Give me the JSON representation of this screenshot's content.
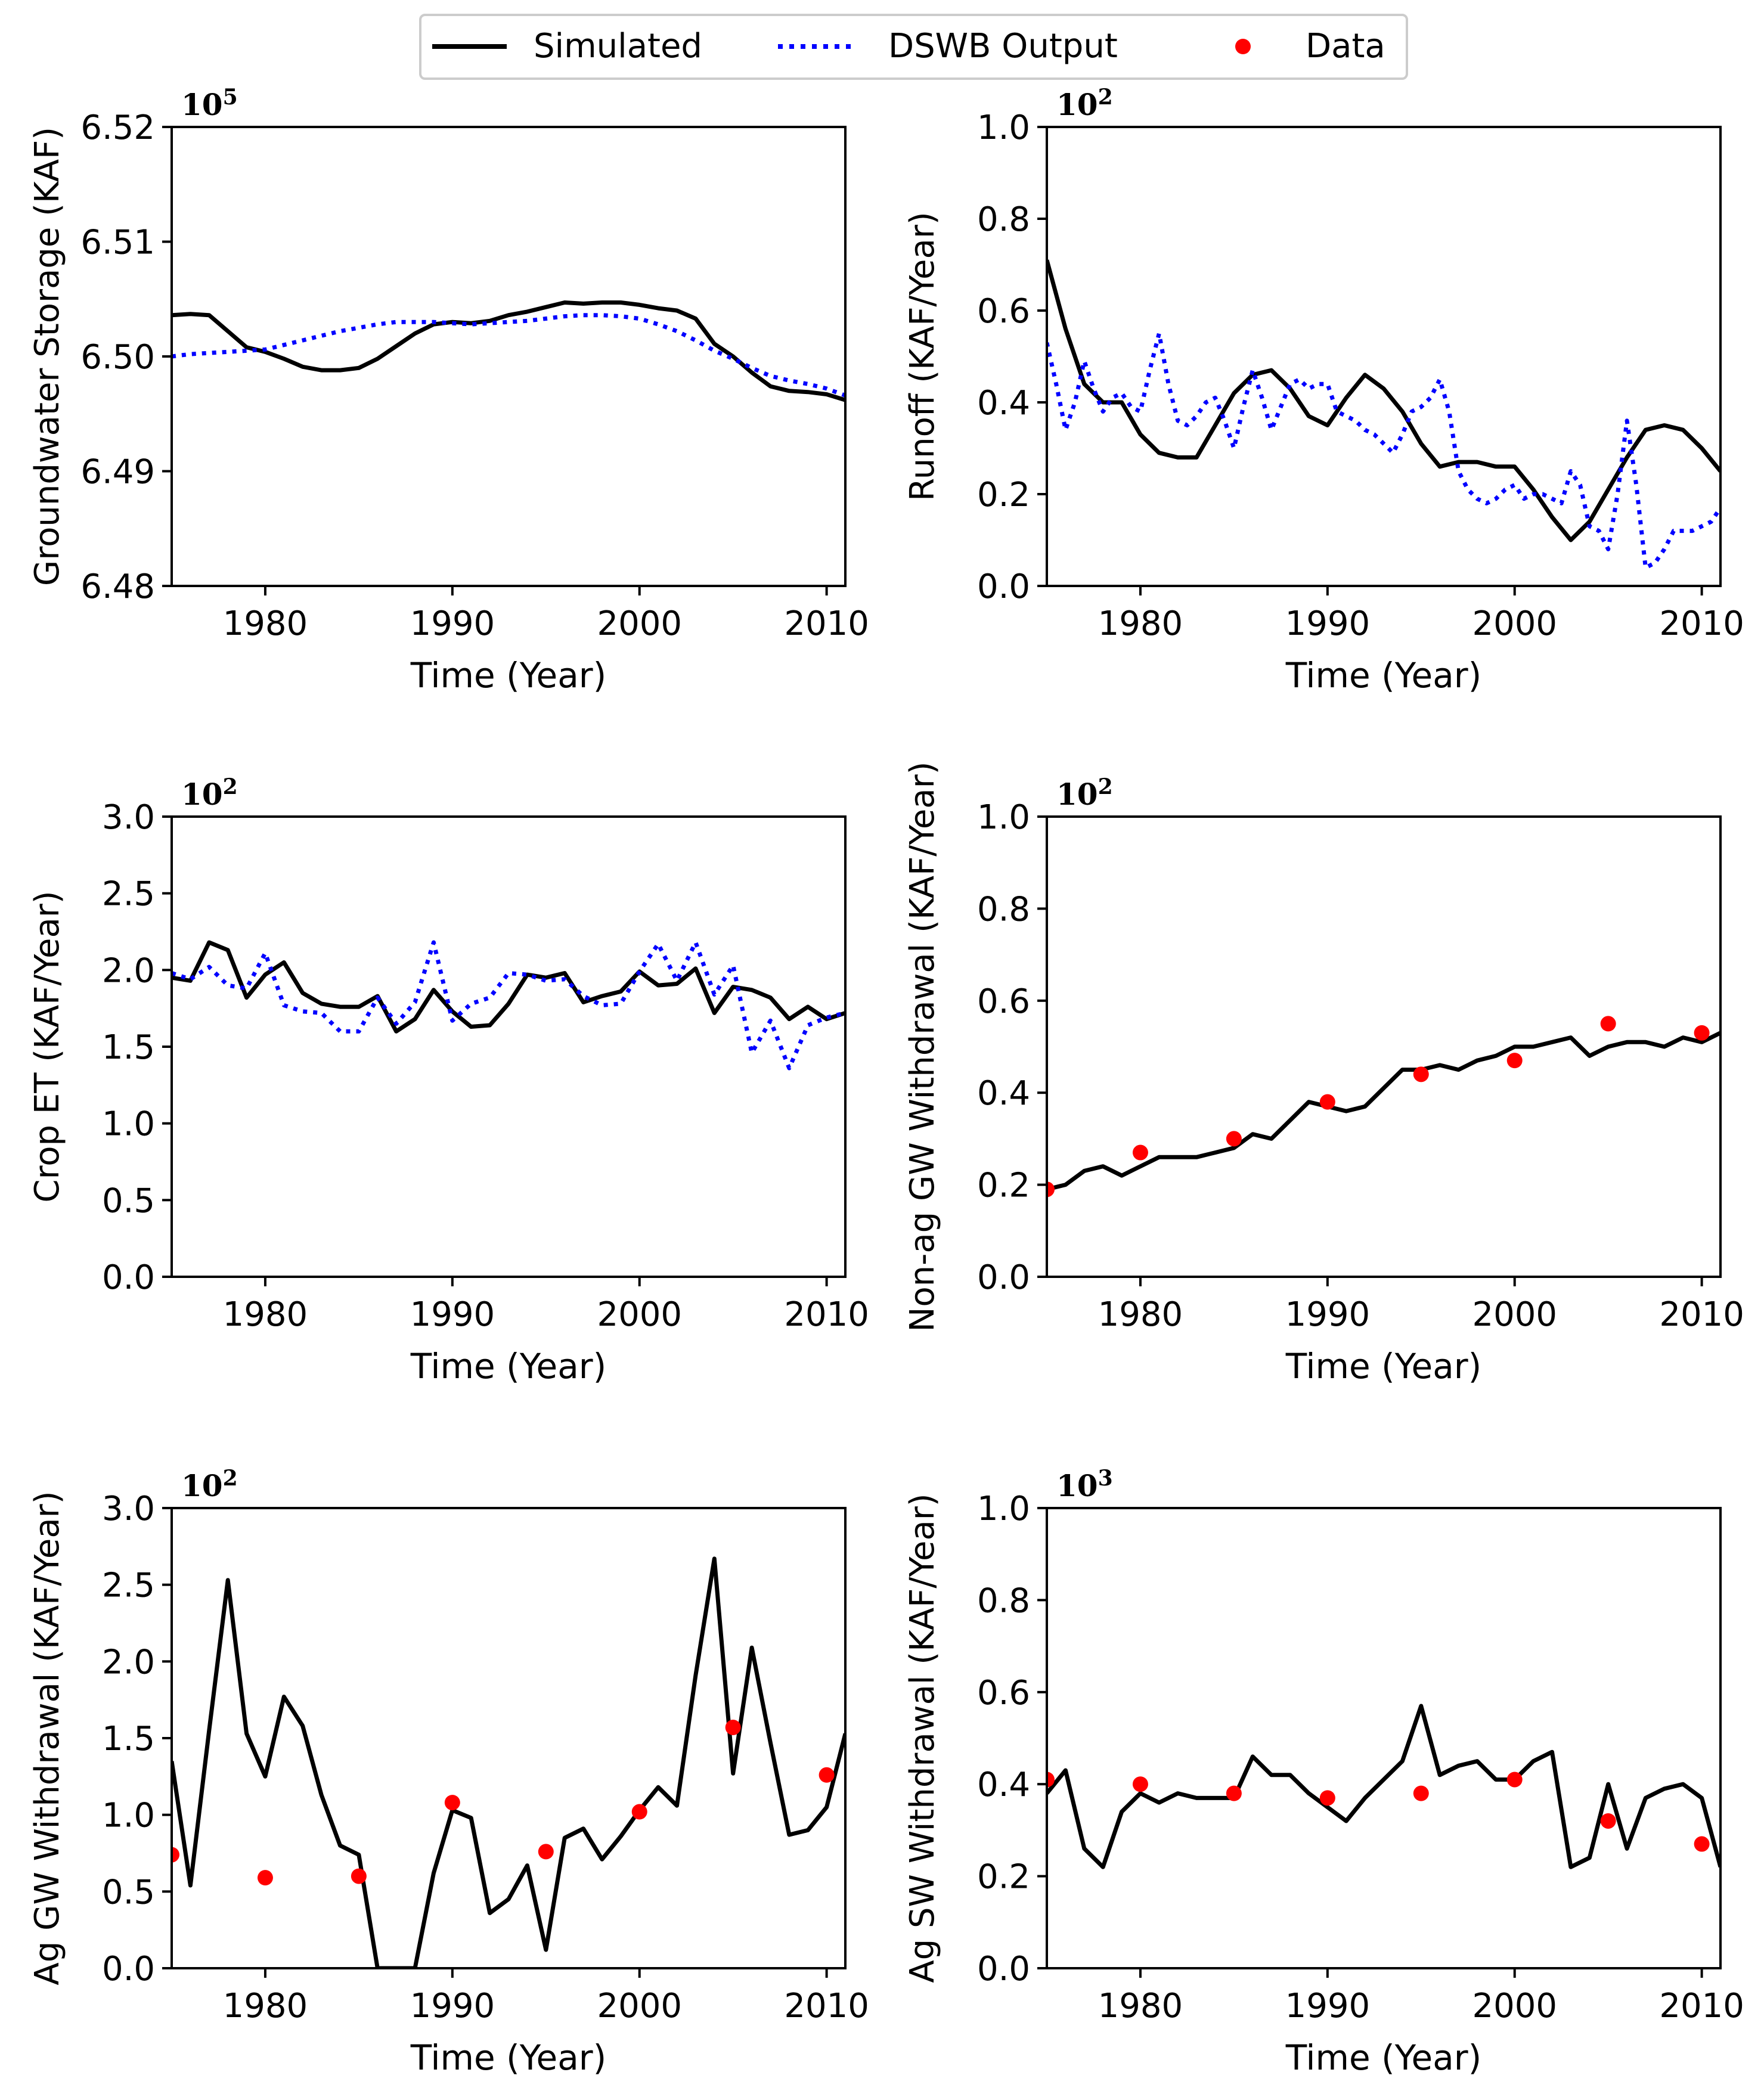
{
  "legend": {
    "placement": "top-center",
    "entries": [
      {
        "label": "Simulated",
        "style": "solid",
        "color": "#000000"
      },
      {
        "label": "DSWB Output",
        "style": "dotted",
        "color": "#0000ff"
      },
      {
        "label": "Data",
        "style": "dot",
        "color": "#ff0000"
      }
    ]
  },
  "chart_data": [
    {
      "type": "line",
      "panel": "groundwater-storage",
      "xlabel": "Time (Year)",
      "ylabel": "Groundwater Storage (KAF)",
      "multiplier": "10",
      "multiplier_exp": "5",
      "xlim": [
        1975,
        2011
      ],
      "ylim": [
        6.48,
        6.52
      ],
      "xticks": [
        1980,
        1990,
        2000,
        2010
      ],
      "yticks": [
        "6.48",
        "6.49",
        "6.50",
        "6.51",
        "6.52"
      ],
      "series": [
        {
          "name": "Simulated",
          "x": [
            1975,
            1976,
            1977,
            1978,
            1979,
            1980,
            1981,
            1982,
            1983,
            1984,
            1985,
            1986,
            1987,
            1988,
            1989,
            1990,
            1991,
            1992,
            1993,
            1994,
            1995,
            1996,
            1997,
            1998,
            1999,
            2000,
            2001,
            2002,
            2003,
            2004,
            2005,
            2006,
            2007,
            2008,
            2009,
            2010,
            2011
          ],
          "y": [
            6.5036,
            6.5037,
            6.5036,
            6.5022,
            6.5008,
            6.5004,
            6.4998,
            6.4991,
            6.4988,
            6.4988,
            6.499,
            6.4998,
            6.5009,
            6.502,
            6.5028,
            6.503,
            6.5029,
            6.5031,
            6.5036,
            6.5039,
            6.5043,
            6.5047,
            6.5046,
            6.5047,
            6.5047,
            6.5045,
            6.5042,
            6.504,
            6.5033,
            6.5011,
            6.5,
            6.4986,
            6.4974,
            6.497,
            6.4969,
            6.4967,
            6.4962
          ]
        },
        {
          "name": "DSWB Output",
          "x": [
            1975,
            1976,
            1977,
            1978,
            1979,
            1980,
            1981,
            1982,
            1983,
            1984,
            1985,
            1986,
            1987,
            1988,
            1989,
            1990,
            1991,
            1992,
            1993,
            1994,
            1995,
            1996,
            1997,
            1998,
            1999,
            2000,
            2001,
            2002,
            2003,
            2004,
            2005,
            2006,
            2007,
            2008,
            2009,
            2010,
            2011
          ],
          "y": [
            6.5,
            6.5002,
            6.5003,
            6.5004,
            6.5005,
            6.5006,
            6.501,
            6.5014,
            6.5018,
            6.5022,
            6.5025,
            6.5028,
            6.503,
            6.503,
            6.503,
            6.5029,
            6.5028,
            6.5029,
            6.503,
            6.5031,
            6.5033,
            6.5035,
            6.5036,
            6.5036,
            6.5035,
            6.5033,
            6.5028,
            6.5022,
            6.5014,
            6.5005,
            6.4998,
            6.499,
            6.4983,
            6.4979,
            6.4976,
            6.4972,
            6.4966
          ]
        }
      ]
    },
    {
      "type": "line",
      "panel": "runoff",
      "xlabel": "Time (Year)",
      "ylabel": "Runoff (KAF/Year)",
      "multiplier": "10",
      "multiplier_exp": "2",
      "xlim": [
        1975,
        2011
      ],
      "ylim": [
        0.0,
        1.0
      ],
      "xticks": [
        1980,
        1990,
        2000,
        2010
      ],
      "yticks": [
        "0.0",
        "0.2",
        "0.4",
        "0.6",
        "0.8",
        "1.0"
      ],
      "series": [
        {
          "name": "Simulated",
          "x": [
            1975,
            1976,
            1977,
            1978,
            1979,
            1980,
            1981,
            1982,
            1983,
            1984,
            1985,
            1986,
            1987,
            1988,
            1989,
            1990,
            1991,
            1992,
            1993,
            1994,
            1995,
            1996,
            1997,
            1998,
            1999,
            2000,
            2001,
            2002,
            2003,
            2004,
            2005,
            2006,
            2007,
            2008,
            2009,
            2010,
            2011
          ],
          "y": [
            0.71,
            0.56,
            0.44,
            0.4,
            0.4,
            0.33,
            0.29,
            0.28,
            0.28,
            0.35,
            0.42,
            0.46,
            0.47,
            0.43,
            0.37,
            0.35,
            0.41,
            0.46,
            0.43,
            0.38,
            0.31,
            0.26,
            0.27,
            0.27,
            0.26,
            0.26,
            0.21,
            0.15,
            0.1,
            0.14,
            0.21,
            0.28,
            0.34,
            0.35,
            0.34,
            0.3,
            0.25
          ]
        },
        {
          "name": "DSWB Output",
          "x": [
            1975,
            1975.5,
            1976,
            1976.5,
            1977,
            1977.5,
            1978,
            1978.5,
            1979,
            1979.5,
            1980,
            1980.5,
            1981,
            1981.5,
            1982,
            1982.5,
            1983,
            1983.5,
            1984,
            1984.5,
            1985,
            1985.5,
            1986,
            1986.5,
            1987,
            1987.5,
            1988,
            1988.5,
            1989,
            1989.5,
            1990,
            1990.5,
            1991,
            1991.5,
            1992,
            1992.5,
            1993,
            1993.5,
            1994,
            1994.5,
            1995,
            1995.5,
            1996,
            1996.5,
            1997,
            1997.5,
            1998,
            1998.5,
            1999,
            1999.5,
            2000,
            2000.5,
            2001,
            2001.5,
            2002,
            2002.5,
            2003,
            2003.5,
            2004,
            2004.5,
            2005,
            2005.5,
            2006,
            2006.5,
            2007,
            2007.5,
            2008,
            2008.5,
            2009,
            2009.5,
            2010,
            2010.5,
            2011
          ],
          "y": [
            0.53,
            0.44,
            0.34,
            0.4,
            0.49,
            0.43,
            0.38,
            0.41,
            0.42,
            0.39,
            0.38,
            0.47,
            0.55,
            0.44,
            0.36,
            0.35,
            0.37,
            0.4,
            0.41,
            0.36,
            0.3,
            0.39,
            0.47,
            0.41,
            0.34,
            0.39,
            0.44,
            0.45,
            0.43,
            0.44,
            0.44,
            0.38,
            0.37,
            0.36,
            0.34,
            0.33,
            0.31,
            0.29,
            0.33,
            0.38,
            0.39,
            0.41,
            0.45,
            0.38,
            0.25,
            0.21,
            0.19,
            0.18,
            0.19,
            0.21,
            0.22,
            0.19,
            0.2,
            0.2,
            0.19,
            0.18,
            0.25,
            0.22,
            0.13,
            0.12,
            0.08,
            0.2,
            0.36,
            0.22,
            0.04,
            0.05,
            0.08,
            0.12,
            0.12,
            0.12,
            0.13,
            0.14,
            0.17
          ]
        }
      ]
    },
    {
      "type": "line",
      "panel": "crop-et",
      "xlabel": "Time (Year)",
      "ylabel": "Crop ET (KAF/Year)",
      "multiplier": "10",
      "multiplier_exp": "2",
      "xlim": [
        1975,
        2011
      ],
      "ylim": [
        0.0,
        3.0
      ],
      "xticks": [
        1980,
        1990,
        2000,
        2010
      ],
      "yticks": [
        "0.0",
        "0.5",
        "1.0",
        "1.5",
        "2.0",
        "2.5",
        "3.0"
      ],
      "series": [
        {
          "name": "Simulated",
          "x": [
            1975,
            1976,
            1977,
            1978,
            1979,
            1980,
            1981,
            1982,
            1983,
            1984,
            1985,
            1986,
            1987,
            1988,
            1989,
            1990,
            1991,
            1992,
            1993,
            1994,
            1995,
            1996,
            1997,
            1998,
            1999,
            2000,
            2001,
            2002,
            2003,
            2004,
            2005,
            2006,
            2007,
            2008,
            2009,
            2010,
            2011
          ],
          "y": [
            1.95,
            1.93,
            2.18,
            2.13,
            1.82,
            1.97,
            2.05,
            1.85,
            1.78,
            1.76,
            1.76,
            1.83,
            1.6,
            1.68,
            1.87,
            1.73,
            1.63,
            1.64,
            1.78,
            1.97,
            1.95,
            1.98,
            1.79,
            1.83,
            1.86,
            1.99,
            1.9,
            1.91,
            2.01,
            1.72,
            1.89,
            1.87,
            1.82,
            1.68,
            1.76,
            1.68,
            1.72
          ]
        },
        {
          "name": "DSWB Output",
          "x": [
            1975,
            1976,
            1977,
            1978,
            1979,
            1980,
            1981,
            1982,
            1983,
            1984,
            1985,
            1986,
            1987,
            1988,
            1989,
            1990,
            1991,
            1992,
            1993,
            1994,
            1995,
            1996,
            1997,
            1998,
            1999,
            2000,
            2001,
            2002,
            2003,
            2004,
            2005,
            2006,
            2007,
            2008,
            2009,
            2010,
            2011
          ],
          "y": [
            1.98,
            1.94,
            2.02,
            1.9,
            1.88,
            2.11,
            1.77,
            1.73,
            1.72,
            1.6,
            1.6,
            1.82,
            1.65,
            1.79,
            2.18,
            1.67,
            1.78,
            1.82,
            1.98,
            1.97,
            1.93,
            1.94,
            1.83,
            1.77,
            1.78,
            1.99,
            2.17,
            1.93,
            2.18,
            1.84,
            2.03,
            1.46,
            1.67,
            1.36,
            1.64,
            1.69,
            1.72
          ]
        }
      ]
    },
    {
      "type": "line",
      "panel": "non-ag-gw-withdrawal",
      "xlabel": "Time (Year)",
      "ylabel": "Non-ag GW Withdrawal (KAF/Year)",
      "multiplier": "10",
      "multiplier_exp": "2",
      "xlim": [
        1975,
        2011
      ],
      "ylim": [
        0.0,
        1.0
      ],
      "xticks": [
        1980,
        1990,
        2000,
        2010
      ],
      "yticks": [
        "0.0",
        "0.2",
        "0.4",
        "0.6",
        "0.8",
        "1.0"
      ],
      "series": [
        {
          "name": "Simulated",
          "x": [
            1975,
            1976,
            1977,
            1978,
            1979,
            1980,
            1981,
            1982,
            1983,
            1984,
            1985,
            1986,
            1987,
            1988,
            1989,
            1990,
            1991,
            1992,
            1993,
            1994,
            1995,
            1996,
            1997,
            1998,
            1999,
            2000,
            2001,
            2002,
            2003,
            2004,
            2005,
            2006,
            2007,
            2008,
            2009,
            2010,
            2011
          ],
          "y": [
            0.19,
            0.2,
            0.23,
            0.24,
            0.22,
            0.24,
            0.26,
            0.26,
            0.26,
            0.27,
            0.28,
            0.31,
            0.3,
            0.34,
            0.38,
            0.37,
            0.36,
            0.37,
            0.41,
            0.45,
            0.45,
            0.46,
            0.45,
            0.47,
            0.48,
            0.5,
            0.5,
            0.51,
            0.52,
            0.48,
            0.5,
            0.51,
            0.51,
            0.5,
            0.52,
            0.51,
            0.53
          ]
        },
        {
          "name": "Data",
          "style": "points",
          "x": [
            1975,
            1980,
            1985,
            1990,
            1995,
            2000,
            2005,
            2010
          ],
          "y": [
            0.19,
            0.27,
            0.3,
            0.38,
            0.44,
            0.47,
            0.55,
            0.53
          ]
        }
      ]
    },
    {
      "type": "line",
      "panel": "ag-gw-withdrawal",
      "xlabel": "Time (Year)",
      "ylabel": "Ag GW Withdrawal (KAF/Year)",
      "multiplier": "10",
      "multiplier_exp": "2",
      "xlim": [
        1975,
        2011
      ],
      "ylim": [
        0.0,
        3.0
      ],
      "xticks": [
        1980,
        1990,
        2000,
        2010
      ],
      "yticks": [
        "0.0",
        "0.5",
        "1.0",
        "1.5",
        "2.0",
        "2.5",
        "3.0"
      ],
      "series": [
        {
          "name": "Simulated",
          "x": [
            1975,
            1976,
            1977,
            1978,
            1979,
            1980,
            1981,
            1982,
            1983,
            1984,
            1985,
            1986,
            1987,
            1988,
            1989,
            1990,
            1991,
            1992,
            1993,
            1994,
            1995,
            1996,
            1997,
            1998,
            1999,
            2000,
            2001,
            2002,
            2003,
            2004,
            2005,
            2006,
            2007,
            2008,
            2009,
            2010,
            2011
          ],
          "y": [
            1.35,
            0.54,
            1.55,
            2.53,
            1.53,
            1.25,
            1.77,
            1.58,
            1.13,
            0.8,
            0.74,
            0.0,
            0.0,
            0.0,
            0.62,
            1.03,
            0.98,
            0.36,
            0.45,
            0.67,
            0.12,
            0.85,
            0.91,
            0.71,
            0.86,
            1.03,
            1.18,
            1.06,
            1.91,
            2.67,
            1.27,
            2.09,
            1.47,
            0.87,
            0.9,
            1.05,
            1.53
          ]
        },
        {
          "name": "Data",
          "style": "points",
          "x": [
            1975,
            1980,
            1985,
            1990,
            1995,
            2000,
            2005,
            2010
          ],
          "y": [
            0.74,
            0.59,
            0.6,
            1.08,
            0.76,
            1.02,
            1.57,
            1.26
          ]
        }
      ]
    },
    {
      "type": "line",
      "panel": "ag-sw-withdrawal",
      "xlabel": "Time (Year)",
      "ylabel": "Ag SW Withdrawal (KAF/Year)",
      "multiplier": "10",
      "multiplier_exp": "3",
      "xlim": [
        1975,
        2011
      ],
      "ylim": [
        0.0,
        1.0
      ],
      "xticks": [
        1980,
        1990,
        2000,
        2010
      ],
      "yticks": [
        "0.0",
        "0.2",
        "0.4",
        "0.6",
        "0.8",
        "1.0"
      ],
      "series": [
        {
          "name": "Simulated",
          "x": [
            1975,
            1976,
            1977,
            1978,
            1979,
            1980,
            1981,
            1982,
            1983,
            1984,
            1985,
            1986,
            1987,
            1988,
            1989,
            1990,
            1991,
            1992,
            1993,
            1994,
            1995,
            1996,
            1997,
            1998,
            1999,
            2000,
            2001,
            2002,
            2003,
            2004,
            2005,
            2006,
            2007,
            2008,
            2009,
            2010,
            2011
          ],
          "y": [
            0.38,
            0.43,
            0.26,
            0.22,
            0.34,
            0.38,
            0.36,
            0.38,
            0.37,
            0.37,
            0.37,
            0.46,
            0.42,
            0.42,
            0.38,
            0.35,
            0.32,
            0.37,
            0.41,
            0.45,
            0.57,
            0.42,
            0.44,
            0.45,
            0.41,
            0.41,
            0.45,
            0.47,
            0.22,
            0.24,
            0.4,
            0.26,
            0.37,
            0.39,
            0.4,
            0.37,
            0.22
          ]
        },
        {
          "name": "Data",
          "style": "points",
          "x": [
            1975,
            1980,
            1985,
            1990,
            1995,
            2000,
            2005,
            2010
          ],
          "y": [
            0.41,
            0.4,
            0.38,
            0.37,
            0.38,
            0.41,
            0.32,
            0.27
          ]
        }
      ]
    }
  ]
}
